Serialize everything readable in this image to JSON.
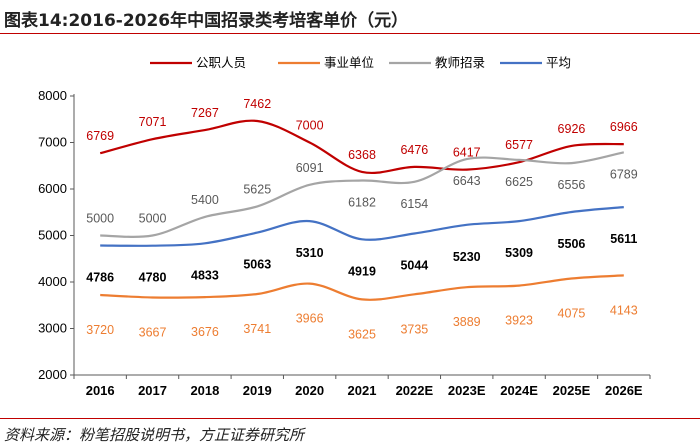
{
  "header": {
    "title": "图表14:2016-2026年中国招录类考培客单价（元）"
  },
  "footer": {
    "source": "资料来源：粉笔招股说明书，方正证券研究所"
  },
  "chart_data": {
    "type": "line",
    "categories": [
      "2016",
      "2017",
      "2018",
      "2019",
      "2020",
      "2021",
      "2022E",
      "2023E",
      "2024E",
      "2025E",
      "2026E"
    ],
    "ylim": [
      2000,
      8000
    ],
    "yticks": [
      2000,
      3000,
      4000,
      5000,
      6000,
      7000,
      8000
    ],
    "grid": false,
    "legend_position": "top",
    "series": [
      {
        "name": "公职人员",
        "color": "#c00000",
        "values": [
          6769,
          7071,
          7267,
          7462,
          7000,
          6368,
          6476,
          6417,
          6577,
          6926,
          6966
        ],
        "label_position": "above",
        "label_bold": false
      },
      {
        "name": "事业单位",
        "color": "#ed7d31",
        "values": [
          3720,
          3667,
          3676,
          3741,
          3966,
          3625,
          3735,
          3889,
          3923,
          4075,
          4143
        ],
        "label_position": "below",
        "label_bold": false
      },
      {
        "name": "教师招录",
        "color": "#a5a5a5",
        "values": [
          5000,
          5000,
          5400,
          5625,
          6091,
          6182,
          6154,
          6643,
          6625,
          6556,
          6789
        ],
        "label_position": "mixed",
        "label_bold": false
      },
      {
        "name": "平均",
        "color": "#4472c4",
        "values": [
          4786,
          4780,
          4833,
          5063,
          5310,
          4919,
          5044,
          5230,
          5309,
          5506,
          5611
        ],
        "label_position": "below",
        "label_bold": true
      }
    ]
  }
}
